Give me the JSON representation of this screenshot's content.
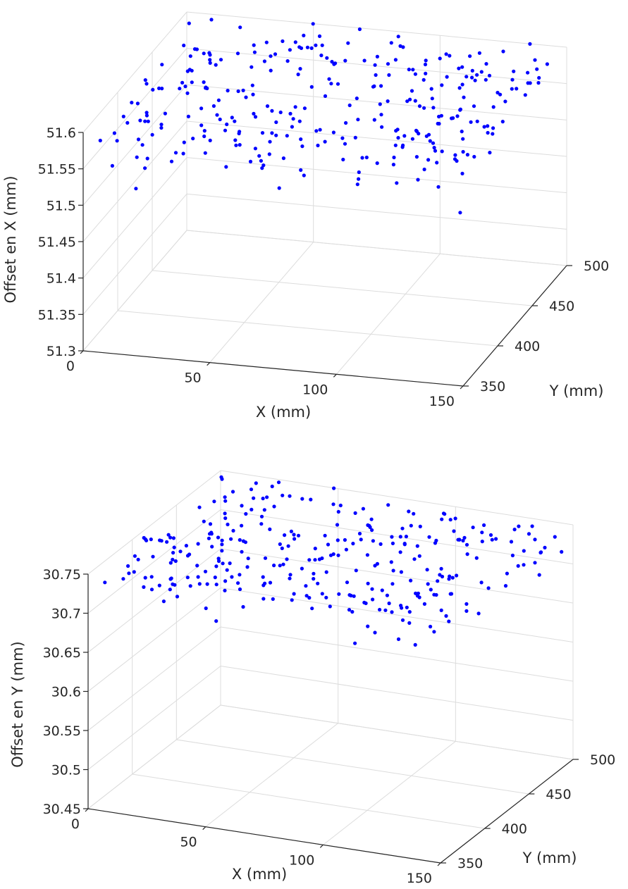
{
  "chart_data": [
    {
      "type": "scatter3d",
      "title": "",
      "xlabel": "X (mm)",
      "ylabel": "Y (mm)",
      "zlabel": "Offset en X (mm)",
      "xlim": [
        0,
        150
      ],
      "ylim": [
        350,
        500
      ],
      "zlim": [
        51.3,
        51.6
      ],
      "xticks": [
        "0",
        "50",
        "100",
        "150"
      ],
      "yticks": [
        "350",
        "400",
        "450",
        "500"
      ],
      "zticks": [
        "51.3",
        "51.35",
        "51.4",
        "51.45",
        "51.5",
        "51.55",
        "51.6"
      ],
      "grid": true,
      "marker_color": "#0000ff",
      "point_count": 300,
      "z_center": 51.585,
      "z_spread": 0.026,
      "outliers": [
        {
          "x": 0,
          "y": 495,
          "z": 51.411
        },
        {
          "x": 0,
          "y": 498,
          "z": 51.5
        },
        {
          "x": 2,
          "y": 500,
          "z": 51.52
        },
        {
          "x": 4,
          "y": 500,
          "z": 51.55
        }
      ]
    },
    {
      "type": "scatter3d",
      "title": "",
      "xlabel": "X (mm)",
      "ylabel": "Y (mm)",
      "zlabel": "Offset en Y (mm)",
      "xlim": [
        0,
        150
      ],
      "ylim": [
        350,
        500
      ],
      "zlim": [
        30.45,
        30.75
      ],
      "xticks": [
        "0",
        "50",
        "100",
        "150"
      ],
      "yticks": [
        "350",
        "400",
        "450",
        "500"
      ],
      "zticks": [
        "30.45",
        "30.5",
        "30.55",
        "30.6",
        "30.65",
        "30.7",
        "30.75"
      ],
      "grid": true,
      "marker_color": "#0000ff",
      "point_count": 300,
      "z_center": 30.752,
      "z_spread": 0.022,
      "outliers": [
        {
          "x": 0,
          "y": 495,
          "z": 30.562
        },
        {
          "x": 0,
          "y": 498,
          "z": 30.636
        },
        {
          "x": 1,
          "y": 499,
          "z": 30.662
        },
        {
          "x": 2,
          "y": 500,
          "z": 30.69
        },
        {
          "x": 2,
          "y": 500,
          "z": 30.712
        }
      ]
    }
  ]
}
